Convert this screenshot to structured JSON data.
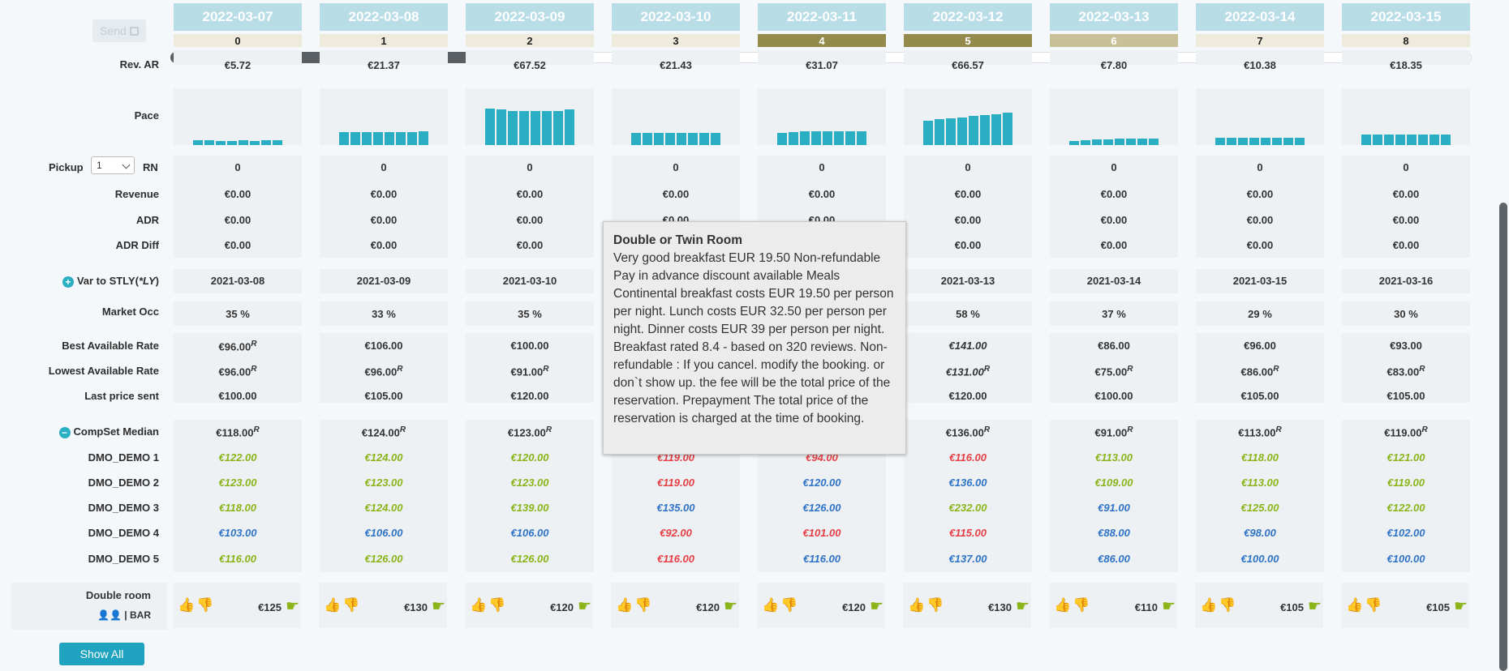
{
  "send_label": "Send",
  "dates": [
    "2022-03-07",
    "2022-03-08",
    "2022-03-09",
    "2022-03-10",
    "2022-03-11",
    "2022-03-12",
    "2022-03-13",
    "2022-03-14",
    "2022-03-15"
  ],
  "day_numbers": [
    "0",
    "1",
    "2",
    "3",
    "4",
    "5",
    "6",
    "7",
    "8"
  ],
  "labels": {
    "rev_ar": "Rev. AR",
    "pace": "Pace",
    "pickup": "Pickup",
    "rn": "RN",
    "revenue": "Revenue",
    "adr": "ADR",
    "adr_diff": "ADR Diff",
    "var_to_stly": "Var to STLY(",
    "ly": "*LY",
    "close_paren": ")",
    "market_occ": "Market Occ",
    "best_available_rate": "Best Available Rate",
    "lowest_available_rate": "Lowest Available Rate",
    "last_price_sent": "Last price sent",
    "compset_median": "CompSet Median",
    "dmo1": "DMO_DEMO 1",
    "dmo2": "DMO_DEMO 2",
    "dmo3": "DMO_DEMO 3",
    "dmo4": "DMO_DEMO 4",
    "dmo5": "DMO_DEMO 5",
    "double_room": "Double room",
    "bar": "| BAR",
    "show_all": "Show All"
  },
  "pickup_select_value": "1",
  "rev_ar_values": [
    "€5.72",
    "€21.37",
    "€67.52",
    "€21.43",
    "€31.07",
    "€66.57",
    "€7.80",
    "€10.38",
    "€18.35"
  ],
  "pace_levels": [
    [
      0.09,
      0.09,
      0.08,
      0.08,
      0.09,
      0.08,
      0.09,
      0.09
    ],
    [
      0.24,
      0.24,
      0.24,
      0.24,
      0.24,
      0.24,
      0.24,
      0.26
    ],
    [
      0.68,
      0.66,
      0.64,
      0.64,
      0.64,
      0.64,
      0.64,
      0.66
    ],
    [
      0.22,
      0.22,
      0.22,
      0.22,
      0.22,
      0.22,
      0.22,
      0.22
    ],
    [
      0.22,
      0.24,
      0.26,
      0.26,
      0.26,
      0.26,
      0.26,
      0.26
    ],
    [
      0.46,
      0.48,
      0.5,
      0.52,
      0.54,
      0.56,
      0.58,
      0.6
    ],
    [
      0.08,
      0.09,
      0.1,
      0.1,
      0.12,
      0.12,
      0.12,
      0.12
    ],
    [
      0.14,
      0.14,
      0.14,
      0.14,
      0.14,
      0.14,
      0.14,
      0.14
    ],
    [
      0.2,
      0.2,
      0.2,
      0.2,
      0.2,
      0.2,
      0.2,
      0.2
    ]
  ],
  "rn_values": [
    "0",
    "0",
    "0",
    "0",
    "0",
    "0",
    "0",
    "0",
    "0"
  ],
  "revenue_values": [
    "€0.00",
    "€0.00",
    "€0.00",
    "€0.00",
    "€0.00",
    "€0.00",
    "€0.00",
    "€0.00",
    "€0.00"
  ],
  "adr_values": [
    "€0.00",
    "€0.00",
    "€0.00",
    "€0.00",
    "€0.00",
    "€0.00",
    "€0.00",
    "€0.00",
    "€0.00"
  ],
  "adr_diff_values": [
    "€0.00",
    "€0.00",
    "€0.00",
    "€0.00",
    "€0.00",
    "€0.00",
    "€0.00",
    "€0.00",
    "€0.00"
  ],
  "stly_dates": [
    "2021-03-08",
    "2021-03-09",
    "2021-03-10",
    "",
    "",
    "2021-03-13",
    "2021-03-14",
    "2021-03-15",
    "2021-03-16"
  ],
  "market_occ_values": [
    "35 %",
    "33 %",
    "35 %",
    "",
    "",
    "58 %",
    "37 %",
    "29 %",
    "30 %"
  ],
  "bar_values": [
    {
      "v": "€96.00",
      "sup": "R",
      "it": false
    },
    {
      "v": "€106.00",
      "sup": "",
      "it": false
    },
    {
      "v": "€100.00",
      "sup": "",
      "it": false
    },
    {
      "v": "",
      "sup": "",
      "it": false
    },
    {
      "v": "",
      "sup": "",
      "it": false
    },
    {
      "v": "€141.00",
      "sup": "",
      "it": true
    },
    {
      "v": "€86.00",
      "sup": "",
      "it": false
    },
    {
      "v": "€96.00",
      "sup": "",
      "it": false
    },
    {
      "v": "€93.00",
      "sup": "",
      "it": false
    }
  ],
  "lar_values": [
    {
      "v": "€96.00",
      "sup": "R",
      "it": false
    },
    {
      "v": "€96.00",
      "sup": "R",
      "it": false
    },
    {
      "v": "€91.00",
      "sup": "R",
      "it": false
    },
    {
      "v": "",
      "sup": "",
      "it": false
    },
    {
      "v": "",
      "sup": "",
      "it": false
    },
    {
      "v": "€131.00",
      "sup": "R",
      "it": true
    },
    {
      "v": "€75.00",
      "sup": "R",
      "it": false
    },
    {
      "v": "€86.00",
      "sup": "R",
      "it": false
    },
    {
      "v": "€83.00",
      "sup": "R",
      "it": false
    }
  ],
  "last_price_values": [
    "€100.00",
    "€105.00",
    "€120.00",
    "",
    "",
    "€120.00",
    "€100.00",
    "€105.00",
    "€105.00"
  ],
  "compset_median_values": [
    {
      "v": "€118.00",
      "sup": "R"
    },
    {
      "v": "€124.00",
      "sup": "R"
    },
    {
      "v": "€123.00",
      "sup": "R"
    },
    {
      "v": "",
      "sup": ""
    },
    {
      "v": "",
      "sup": ""
    },
    {
      "v": "€136.00",
      "sup": "R"
    },
    {
      "v": "€91.00",
      "sup": "R"
    },
    {
      "v": "€113.00",
      "sup": "R"
    },
    {
      "v": "€119.00",
      "sup": "R"
    }
  ],
  "dmo_rows": [
    [
      {
        "v": "€122.00",
        "c": "green"
      },
      {
        "v": "€124.00",
        "c": "green"
      },
      {
        "v": "€120.00",
        "c": "green"
      },
      {
        "v": "€119.00",
        "c": "red"
      },
      {
        "v": "€94.00",
        "c": "red"
      },
      {
        "v": "€116.00",
        "c": "red"
      },
      {
        "v": "€113.00",
        "c": "green"
      },
      {
        "v": "€118.00",
        "c": "green"
      },
      {
        "v": "€121.00",
        "c": "green"
      }
    ],
    [
      {
        "v": "€123.00",
        "c": "green"
      },
      {
        "v": "€123.00",
        "c": "green"
      },
      {
        "v": "€123.00",
        "c": "green"
      },
      {
        "v": "€119.00",
        "c": "red"
      },
      {
        "v": "€120.00",
        "c": "blue"
      },
      {
        "v": "€136.00",
        "c": "blue"
      },
      {
        "v": "€109.00",
        "c": "green"
      },
      {
        "v": "€113.00",
        "c": "green"
      },
      {
        "v": "€119.00",
        "c": "green"
      }
    ],
    [
      {
        "v": "€118.00",
        "c": "green"
      },
      {
        "v": "€124.00",
        "c": "green"
      },
      {
        "v": "€139.00",
        "c": "green"
      },
      {
        "v": "€135.00",
        "c": "blue"
      },
      {
        "v": "€126.00",
        "c": "blue"
      },
      {
        "v": "€232.00",
        "c": "green"
      },
      {
        "v": "€91.00",
        "c": "blue"
      },
      {
        "v": "€125.00",
        "c": "green"
      },
      {
        "v": "€122.00",
        "c": "green"
      }
    ],
    [
      {
        "v": "€103.00",
        "c": "blue"
      },
      {
        "v": "€106.00",
        "c": "blue"
      },
      {
        "v": "€106.00",
        "c": "blue"
      },
      {
        "v": "€92.00",
        "c": "red"
      },
      {
        "v": "€101.00",
        "c": "red"
      },
      {
        "v": "€115.00",
        "c": "red"
      },
      {
        "v": "€88.00",
        "c": "blue"
      },
      {
        "v": "€98.00",
        "c": "blue"
      },
      {
        "v": "€102.00",
        "c": "blue"
      }
    ],
    [
      {
        "v": "€116.00",
        "c": "green"
      },
      {
        "v": "€126.00",
        "c": "green"
      },
      {
        "v": "€126.00",
        "c": "green"
      },
      {
        "v": "€116.00",
        "c": "red"
      },
      {
        "v": "€116.00",
        "c": "blue"
      },
      {
        "v": "€137.00",
        "c": "blue"
      },
      {
        "v": "€86.00",
        "c": "blue"
      },
      {
        "v": "€100.00",
        "c": "blue"
      },
      {
        "v": "€100.00",
        "c": "blue"
      }
    ]
  ],
  "room_prices": [
    "€125",
    "€130",
    "€120",
    "€120",
    "€120",
    "€130",
    "€110",
    "€105",
    "€105"
  ],
  "tooltip": {
    "title": "Double or Twin Room",
    "body": "Very good breakfast EUR 19.50 Non-refundable Pay in advance discount available Meals Continental breakfast costs EUR 19.50 per person per night. Lunch costs EUR 32.50 per person per night. Dinner costs EUR 39 per person per night. Breakfast rated 8.4 - based on 320 reviews. Non-refundable : If you cancel. modify the booking. or don`t show up. the fee will be the total price of the reservation. Prepayment The total price of the reservation is charged at the time of booking."
  },
  "colors": {
    "header": "#b8dde7",
    "accent": "#2aaec3",
    "green": "#8ab41a",
    "red": "#e53f45",
    "blue": "#2e73c6"
  }
}
